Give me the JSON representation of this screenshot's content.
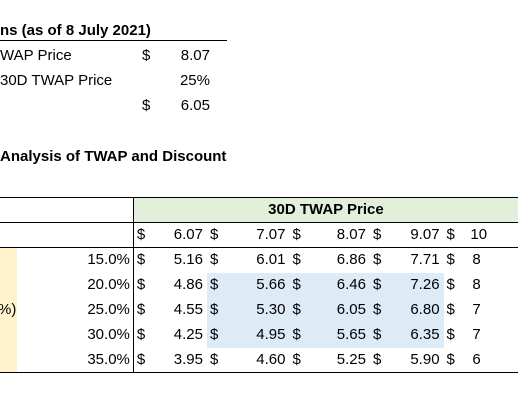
{
  "assumptions": {
    "title": "ns (as of 8 July 2021)",
    "rows": [
      {
        "label": "WAP Price",
        "currency": "$",
        "value": "8.07"
      },
      {
        "label": "30D TWAP Price",
        "currency": "",
        "value": "25%"
      },
      {
        "label": "",
        "currency": "$",
        "value": "6.05"
      }
    ]
  },
  "analysis": {
    "title": "Analysis of TWAP and Discount",
    "header": "30D TWAP Price",
    "row_side_label": "%)",
    "currency": "$",
    "columns": [
      "6.07",
      "7.07",
      "8.07",
      "9.07",
      "10"
    ],
    "rows": [
      {
        "discount": "15.0%",
        "values": [
          "5.16",
          "6.01",
          "6.86",
          "7.71",
          "8"
        ]
      },
      {
        "discount": "20.0%",
        "values": [
          "4.86",
          "5.66",
          "6.46",
          "7.26",
          "8"
        ]
      },
      {
        "discount": "25.0%",
        "values": [
          "4.55",
          "5.30",
          "6.05",
          "6.80",
          "7"
        ]
      },
      {
        "discount": "30.0%",
        "values": [
          "4.25",
          "4.95",
          "5.65",
          "6.35",
          "7"
        ]
      },
      {
        "discount": "35.0%",
        "values": [
          "3.95",
          "4.60",
          "5.25",
          "5.90",
          "6"
        ]
      }
    ]
  }
}
